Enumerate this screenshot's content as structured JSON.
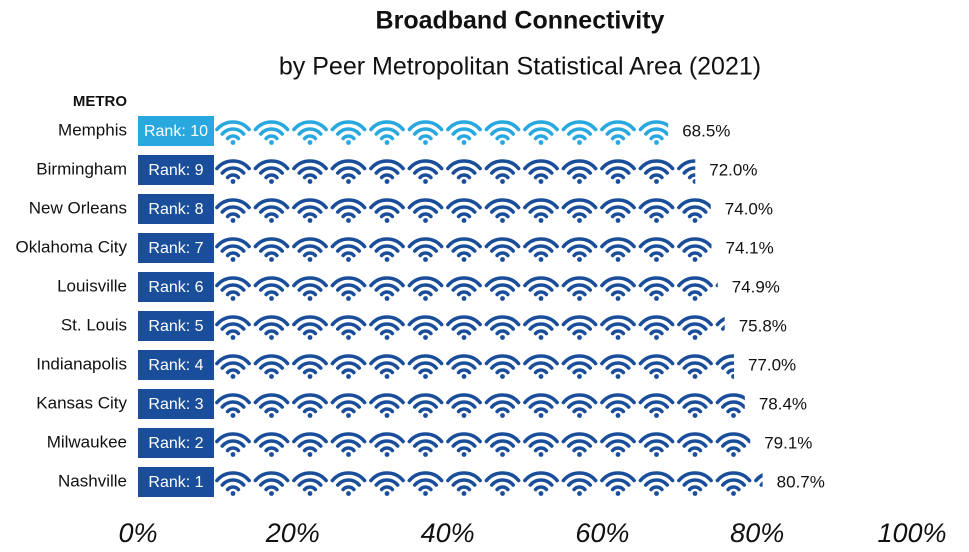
{
  "chart_data": {
    "type": "bar",
    "title": "Broadband Connectivity",
    "subtitle": "by Peer Metropolitan Statistical Area (2021)",
    "category_header": "METRO",
    "categories": [
      "Memphis",
      "Birmingham",
      "New Orleans",
      "Oklahoma City",
      "Louisville",
      "St. Louis",
      "Indianapolis",
      "Kansas City",
      "Milwaukee",
      "Nashville"
    ],
    "rank_labels": [
      "Rank: 10",
      "Rank: 9",
      "Rank: 8",
      "Rank: 7",
      "Rank: 6",
      "Rank: 5",
      "Rank: 4",
      "Rank: 3",
      "Rank: 2",
      "Rank: 1"
    ],
    "values": [
      68.5,
      72.0,
      74.0,
      74.1,
      74.9,
      75.8,
      77.0,
      78.4,
      79.1,
      80.7
    ],
    "value_labels": [
      "68.5%",
      "72.0%",
      "74.0%",
      "74.1%",
      "74.9%",
      "75.8%",
      "77.0%",
      "78.4%",
      "79.1%",
      "80.7%"
    ],
    "colors": [
      "#29a8e0",
      "#1a4e9a",
      "#1a4e9a",
      "#1a4e9a",
      "#1a4e9a",
      "#1a4e9a",
      "#1a4e9a",
      "#1a4e9a",
      "#1a4e9a",
      "#1a4e9a"
    ],
    "xlim": [
      0,
      100
    ],
    "xticks": [
      {
        "value": 0,
        "label": "0%"
      },
      {
        "value": 20,
        "label": "20%"
      },
      {
        "value": 40,
        "label": "40%"
      },
      {
        "value": 60,
        "label": "60%"
      },
      {
        "value": 80,
        "label": "80%"
      },
      {
        "value": 100,
        "label": "100%"
      }
    ],
    "grid": false
  }
}
